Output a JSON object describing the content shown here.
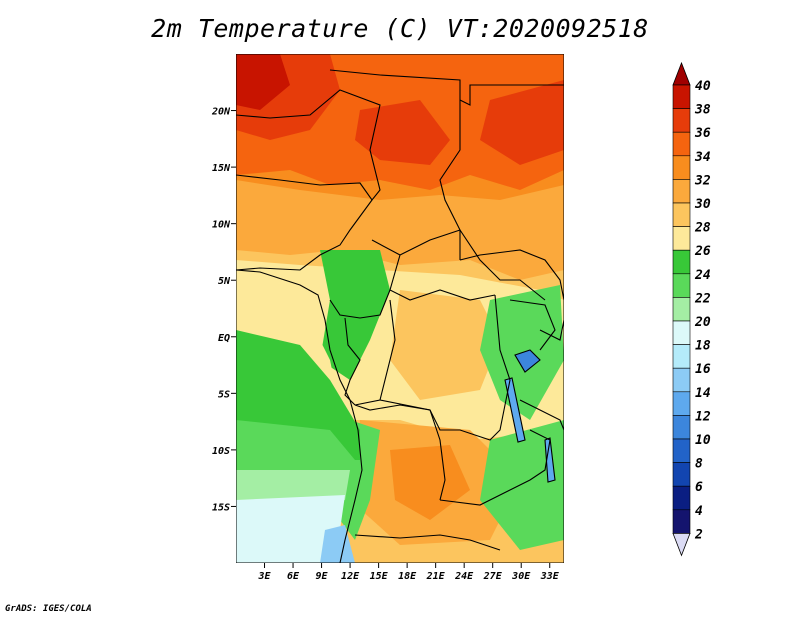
{
  "title": "2m Temperature (C) VT:2020092518",
  "footer": "GrADS: IGES/COLA",
  "map": {
    "type": "filled-contour map",
    "lon_range": [
      0,
      34.5
    ],
    "lat_range": [
      -20,
      25
    ],
    "lat_ticks": [
      "20N",
      "15N",
      "10N",
      "5N",
      "EQ",
      "5S",
      "10S",
      "15S"
    ],
    "lat_values": [
      20,
      15,
      10,
      5,
      0,
      -5,
      -10,
      -15
    ],
    "lon_ticks": [
      "3E",
      "6E",
      "9E",
      "12E",
      "15E",
      "18E",
      "21E",
      "24E",
      "27E",
      "30E",
      "33E"
    ],
    "lon_values": [
      3,
      6,
      9,
      12,
      15,
      18,
      21,
      24,
      27,
      30,
      33
    ]
  },
  "colorbar": {
    "labels": [
      "40",
      "38",
      "36",
      "34",
      "32",
      "30",
      "28",
      "26",
      "24",
      "22",
      "20",
      "18",
      "16",
      "14",
      "12",
      "10",
      "8",
      "6",
      "4",
      "2"
    ],
    "levels": [
      40,
      38,
      36,
      34,
      32,
      30,
      28,
      26,
      24,
      22,
      20,
      18,
      16,
      14,
      12,
      10,
      8,
      6,
      4,
      2
    ],
    "colors": [
      "#a00000",
      "#c81400",
      "#e63c0a",
      "#f5640f",
      "#f88d1e",
      "#fba93c",
      "#fcc55e",
      "#fde99a",
      "#38c838",
      "#5ad95a",
      "#a4eea4",
      "#dcf9f9",
      "#b4ebfa",
      "#8ccbf5",
      "#5ea9ee",
      "#3c86dc",
      "#2263c8",
      "#1245b0",
      "#0a1e82",
      "#14146e"
    ],
    "top_color": "#a00000",
    "bottom_color": "#dcdcf5"
  }
}
